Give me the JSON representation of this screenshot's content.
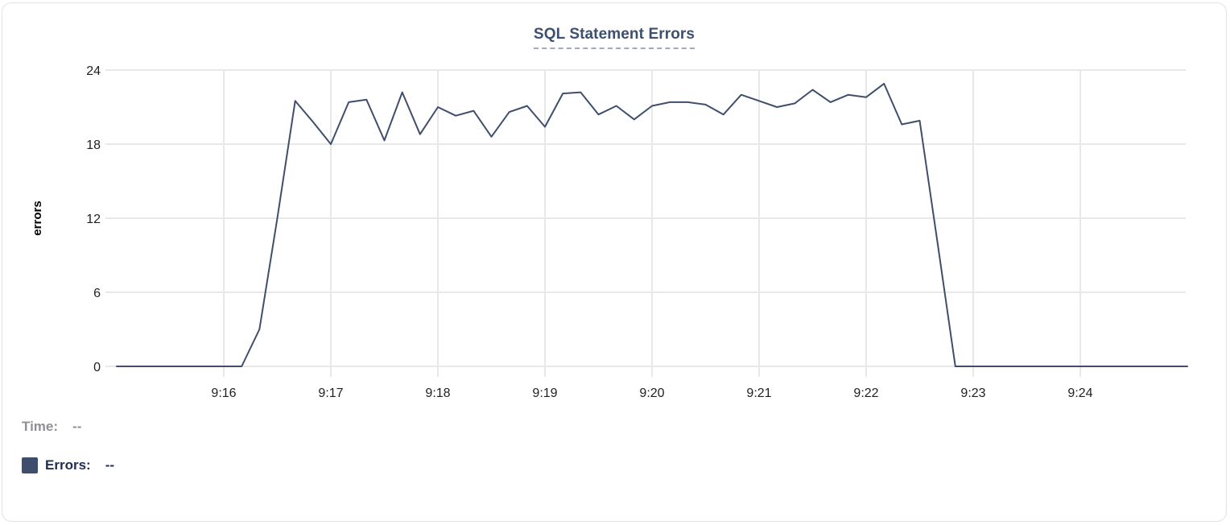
{
  "chart_data": {
    "type": "line",
    "title": "SQL Statement Errors",
    "xlabel": "",
    "ylabel": "errors",
    "ylim": [
      0,
      24
    ],
    "y_ticks": [
      0,
      6,
      12,
      18,
      24
    ],
    "x_ticks": [
      "9:16",
      "9:17",
      "9:18",
      "9:19",
      "9:20",
      "9:21",
      "9:22",
      "9:23",
      "9:24"
    ],
    "x_start": "9:15:00",
    "x_end": "9:25:00",
    "interval_seconds": 10,
    "grid": true,
    "legend_position": "bottom-left",
    "series": [
      {
        "name": "Errors",
        "color": "#3f4e6d",
        "times": [
          "9:15:00",
          "9:15:10",
          "9:15:20",
          "9:15:30",
          "9:15:40",
          "9:15:50",
          "9:16:00",
          "9:16:10",
          "9:16:20",
          "9:16:30",
          "9:16:40",
          "9:16:50",
          "9:17:00",
          "9:17:10",
          "9:17:20",
          "9:17:30",
          "9:17:40",
          "9:17:50",
          "9:18:00",
          "9:18:10",
          "9:18:20",
          "9:18:30",
          "9:18:40",
          "9:18:50",
          "9:19:00",
          "9:19:10",
          "9:19:20",
          "9:19:30",
          "9:19:40",
          "9:19:50",
          "9:20:00",
          "9:20:10",
          "9:20:20",
          "9:20:30",
          "9:20:40",
          "9:20:50",
          "9:21:00",
          "9:21:10",
          "9:21:20",
          "9:21:30",
          "9:21:40",
          "9:21:50",
          "9:22:00",
          "9:22:10",
          "9:22:20",
          "9:22:30",
          "9:22:40",
          "9:22:50",
          "9:23:00",
          "9:23:10",
          "9:23:20",
          "9:23:30",
          "9:23:40",
          "9:23:50",
          "9:24:00",
          "9:24:10",
          "9:24:20",
          "9:24:30",
          "9:24:40",
          "9:24:50",
          "9:25:00"
        ],
        "values": [
          0,
          0,
          0,
          0,
          0,
          0,
          0,
          0,
          3,
          12,
          21.5,
          19.8,
          18,
          21.4,
          21.6,
          18.3,
          22.2,
          18.8,
          21,
          20.3,
          20.7,
          18.6,
          20.6,
          21.1,
          19.4,
          22.1,
          22.2,
          20.4,
          21.1,
          20,
          21.1,
          21.4,
          21.4,
          21.2,
          20.4,
          22,
          21.5,
          21,
          21.3,
          22.4,
          21.4,
          22,
          21.8,
          22.9,
          19.6,
          19.9,
          10,
          0,
          0,
          0,
          0,
          0,
          0,
          0,
          0,
          0,
          0,
          0,
          0,
          0,
          0
        ]
      }
    ]
  },
  "tooltip_legend": {
    "time_label": "Time:",
    "time_value": "--",
    "errors_label": "Errors:",
    "errors_value": "--",
    "swatch_color": "#3f4e6d"
  },
  "colors": {
    "line": "#3f4e6d",
    "title": "#3d5070",
    "gridline": "#e8e8ea",
    "axis_text": "#1f1f21",
    "legend_gray": "#8e9095",
    "legend_navy": "#232e55",
    "card_border": "#e3e3e7"
  }
}
